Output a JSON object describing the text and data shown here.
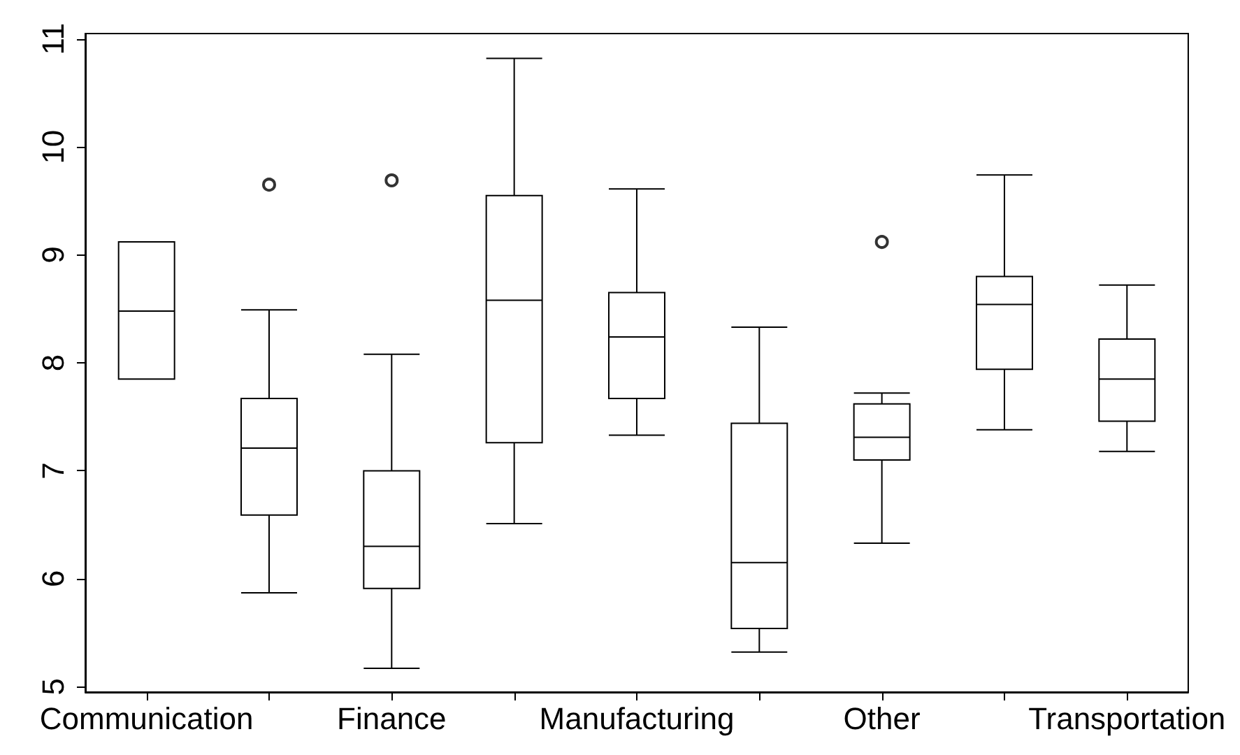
{
  "chart_data": {
    "type": "box",
    "categories": [
      "Communication",
      null,
      "Finance",
      null,
      "Manufacturing",
      null,
      "Other",
      null,
      "Transportation"
    ],
    "boxes": [
      {
        "low": 7.85,
        "q1": 7.85,
        "median": 8.48,
        "q3": 9.12,
        "high": 9.12
      },
      {
        "low": 5.87,
        "q1": 6.59,
        "median": 7.21,
        "q3": 7.67,
        "high": 8.49,
        "outliers": [
          9.65
        ]
      },
      {
        "low": 5.17,
        "q1": 5.91,
        "median": 6.3,
        "q3": 7.0,
        "high": 8.08,
        "outliers": [
          9.69
        ]
      },
      {
        "low": 6.51,
        "q1": 7.26,
        "median": 8.58,
        "q3": 9.55,
        "high": 10.82
      },
      {
        "low": 7.33,
        "q1": 7.67,
        "median": 8.24,
        "q3": 8.65,
        "high": 9.61
      },
      {
        "low": 5.32,
        "q1": 5.54,
        "median": 6.15,
        "q3": 7.44,
        "high": 8.33
      },
      {
        "low": 6.33,
        "q1": 7.1,
        "median": 7.31,
        "q3": 7.62,
        "high": 7.72,
        "outliers": [
          9.12
        ]
      },
      {
        "low": 7.38,
        "q1": 7.94,
        "median": 8.54,
        "q3": 8.8,
        "high": 9.74
      },
      {
        "low": 7.18,
        "q1": 7.46,
        "median": 7.85,
        "q3": 8.22,
        "high": 8.72
      }
    ],
    "color": "#000000",
    "ylim": [
      4.95,
      11.05
    ],
    "yticks": [
      5,
      6,
      7,
      8,
      9,
      10,
      11
    ],
    "grid": false
  }
}
